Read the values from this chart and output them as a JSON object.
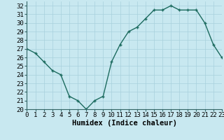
{
  "x": [
    0,
    1,
    2,
    3,
    4,
    5,
    6,
    7,
    8,
    9,
    10,
    11,
    12,
    13,
    14,
    15,
    16,
    17,
    18,
    19,
    20,
    21,
    22,
    23
  ],
  "y": [
    27,
    26.5,
    25.5,
    24.5,
    24,
    21.5,
    21,
    20,
    21,
    21.5,
    25.5,
    27.5,
    29,
    29.5,
    30.5,
    31.5,
    31.5,
    32,
    31.5,
    31.5,
    31.5,
    30,
    27.5,
    26
  ],
  "line_color": "#1c6b5f",
  "marker": "+",
  "bg_color": "#c8e8f0",
  "grid_color": "#a8d0dc",
  "xlabel": "Humidex (Indice chaleur)",
  "xlim": [
    0,
    23
  ],
  "ylim": [
    20,
    32.5
  ],
  "yticks": [
    20,
    21,
    22,
    23,
    24,
    25,
    26,
    27,
    28,
    29,
    30,
    31,
    32
  ],
  "xticks": [
    0,
    1,
    2,
    3,
    4,
    5,
    6,
    7,
    8,
    9,
    10,
    11,
    12,
    13,
    14,
    15,
    16,
    17,
    18,
    19,
    20,
    21,
    22,
    23
  ],
  "xlabel_fontsize": 7.5,
  "tick_fontsize": 6.5,
  "linewidth": 1.0,
  "markersize": 3.5,
  "spine_color": "#336666"
}
